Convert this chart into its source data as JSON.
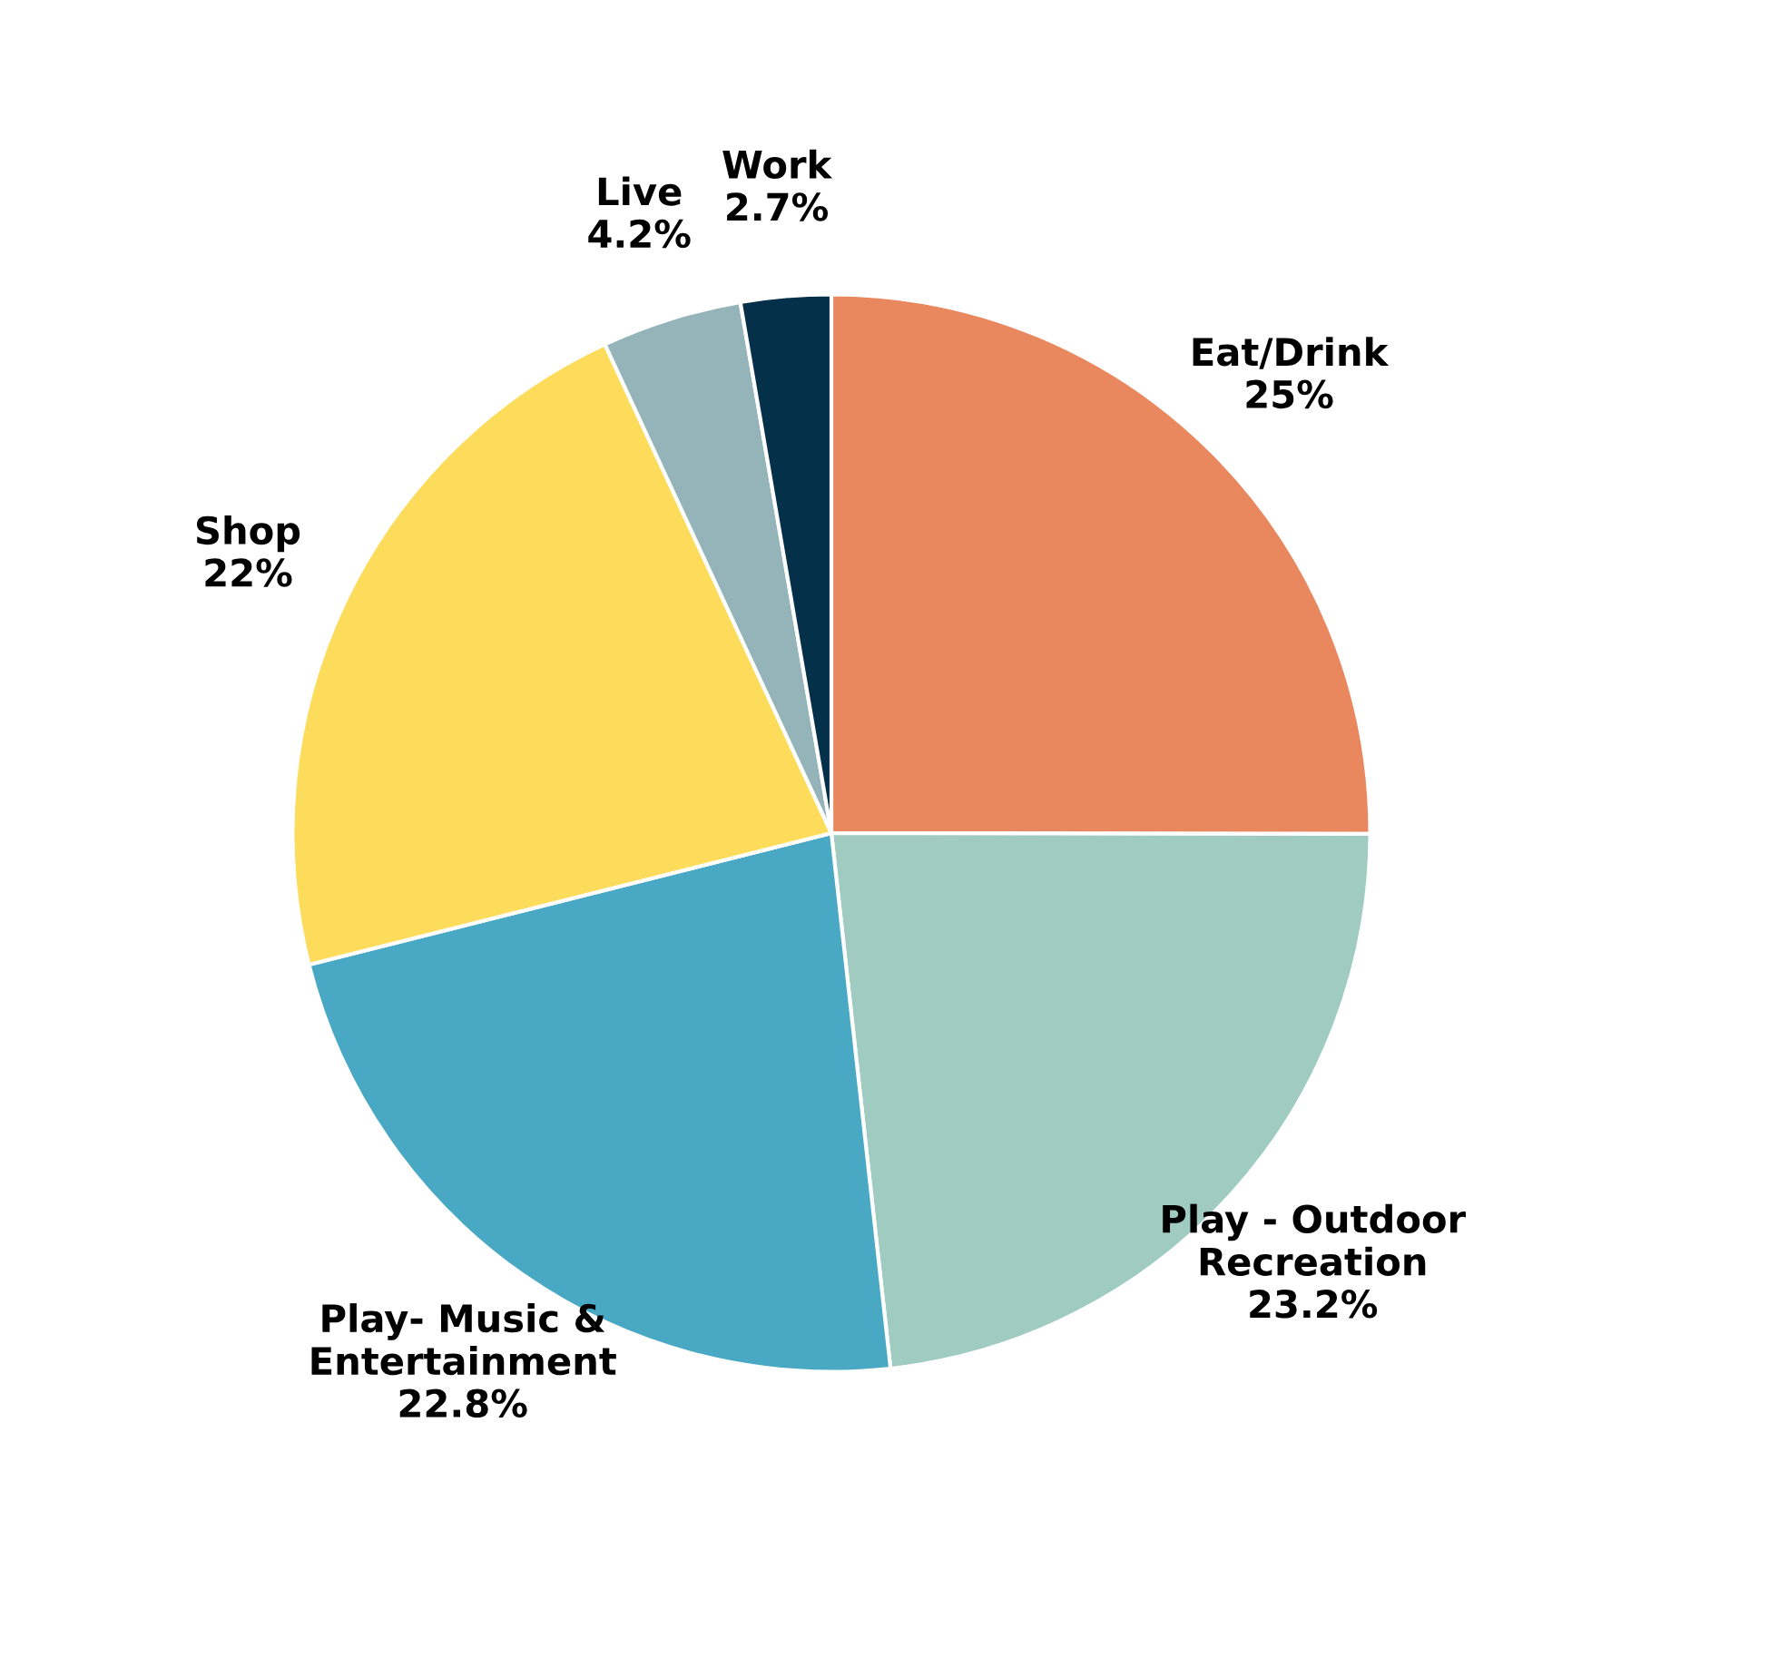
{
  "chart_data": {
    "type": "pie",
    "categories": [
      "Eat/Drink",
      "Play - Outdoor\nRecreation",
      "Play- Music &\nEntertainment",
      "Shop",
      "Live",
      "Work"
    ],
    "values": [
      25,
      23.2,
      22.8,
      22,
      4.2,
      2.7
    ],
    "value_labels": [
      "25%",
      "23.2%",
      "22.8%",
      "22%",
      "4.2%",
      "2.7%"
    ],
    "colors": [
      "#e9875e",
      "#9fcbc0",
      "#49a9c5",
      "#fddc5c",
      "#94b4b9",
      "#05304a"
    ],
    "legend": false
  }
}
